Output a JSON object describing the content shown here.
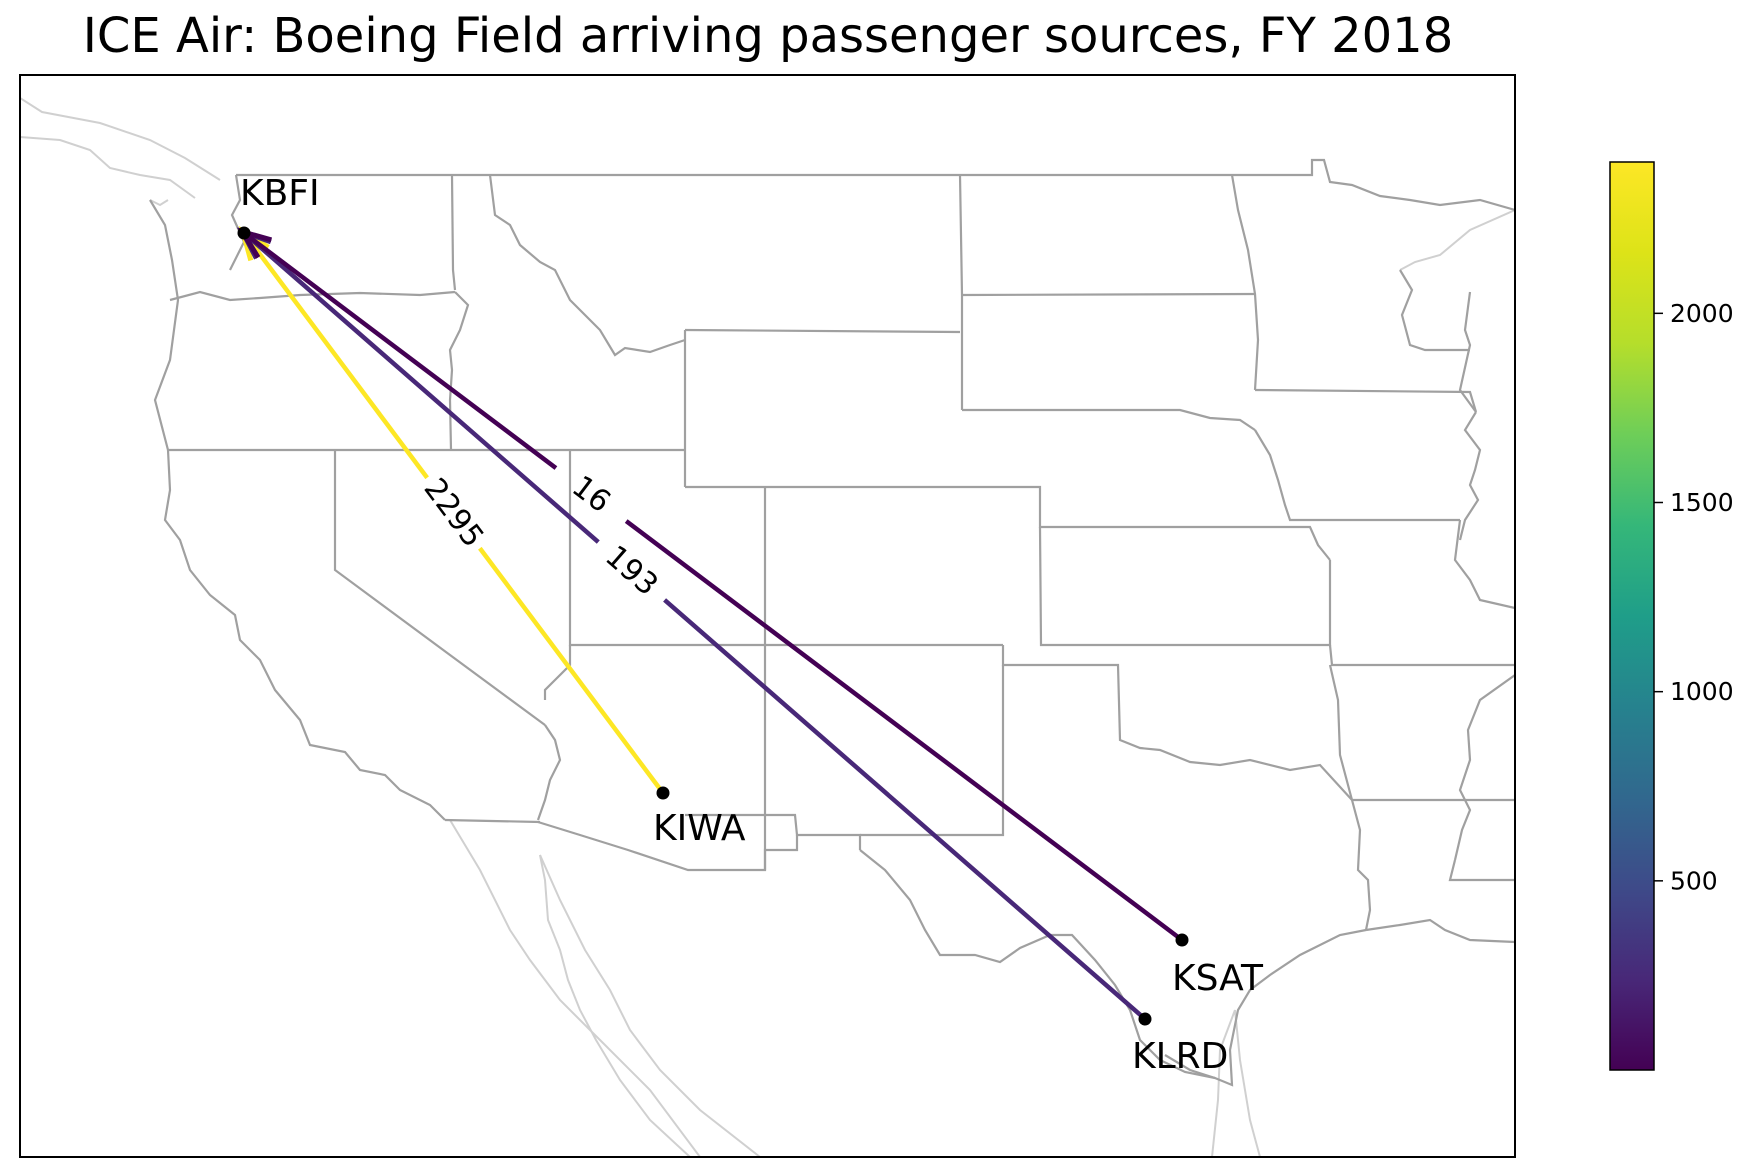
{
  "title": "ICE Air: Boeing Field arriving passenger sources, FY 2018",
  "destination": {
    "code": "KBFI"
  },
  "routes": [
    {
      "origin": "KIWA",
      "destination": "KBFI",
      "passengers": 2295,
      "color": "#fde725"
    },
    {
      "origin": "KLRD",
      "destination": "KBFI",
      "passengers": 193,
      "color": "#482878"
    },
    {
      "origin": "KSAT",
      "destination": "KBFI",
      "passengers": 16,
      "color": "#440154"
    }
  ],
  "airports": [
    {
      "code": "KBFI"
    },
    {
      "code": "KIWA"
    },
    {
      "code": "KSAT"
    },
    {
      "code": "KLRD"
    }
  ],
  "colorbar": {
    "colormap": "viridis",
    "range": [
      0,
      2400
    ],
    "ticks": [
      "500",
      "1000",
      "1500",
      "2000"
    ]
  },
  "colors": {
    "state_border": "#a0a0a0",
    "coast_border": "#d0d0d0"
  }
}
